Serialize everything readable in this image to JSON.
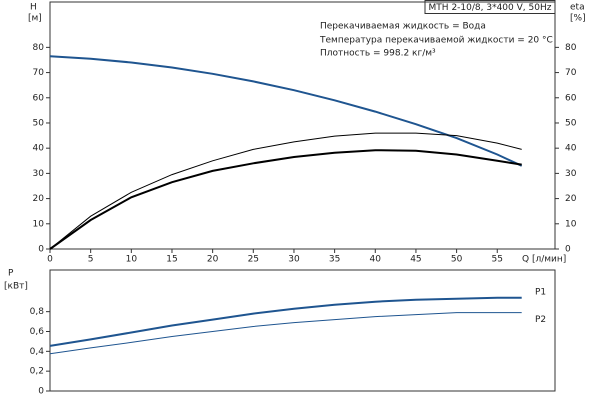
{
  "chart_data": [
    {
      "type": "line",
      "title": "MTH 2-10/8, 3*400 V, 50Hz",
      "annotations": [
        "Перекачиваемая жидкость = Вода",
        "Температура перекачиваемой жидкости = 20 °C",
        "Плотность = 998.2 кг/м³"
      ],
      "xlabel": "Q [л/мин]",
      "ylabel": [
        "H",
        "[м]"
      ],
      "y2label": [
        "eta",
        "[%]"
      ],
      "x": [
        0,
        5,
        10,
        15,
        20,
        25,
        30,
        35,
        40,
        45,
        50,
        55,
        58
      ],
      "xlim": [
        0,
        62.1
      ],
      "xticks": [
        0,
        5,
        10,
        15,
        20,
        25,
        30,
        35,
        40,
        45,
        50,
        55
      ],
      "ylim": [
        0,
        98
      ],
      "yticks": [
        0,
        10,
        20,
        30,
        40,
        50,
        60,
        70,
        80
      ],
      "y2lim": [
        0,
        98
      ],
      "y2ticks": [
        0,
        10,
        20,
        30,
        40,
        50,
        60,
        70,
        80
      ],
      "series": [
        {
          "color": "#1f5590",
          "values": [
            76.5,
            75.5,
            74,
            72,
            69.5,
            66.5,
            63,
            59,
            54.5,
            49.5,
            44,
            37.5,
            33
          ]
        },
        {
          "color": "#000000",
          "axis": "y2",
          "values": [
            0,
            13,
            22.5,
            29.5,
            35,
            39.5,
            42.5,
            44.8,
            46,
            46,
            45,
            42,
            39.5
          ]
        },
        {
          "color": "#000000",
          "axis": "y2",
          "values": [
            0,
            11.5,
            20.5,
            26.5,
            31,
            34,
            36.5,
            38.2,
            39.2,
            39,
            37.5,
            35,
            33.5
          ]
        }
      ]
    },
    {
      "type": "line",
      "ylabel": [
        "P",
        "[кВт]"
      ],
      "x": [
        0,
        5,
        10,
        15,
        20,
        25,
        30,
        35,
        40,
        45,
        50,
        55,
        58
      ],
      "xlim": [
        0,
        62.1
      ],
      "ylim": [
        0,
        1.22
      ],
      "yticks": [
        0,
        {
          "value": 0.2,
          "label": "0,2"
        },
        {
          "value": 0.4,
          "label": "0,4"
        },
        {
          "value": 0.6,
          "label": "0,6"
        },
        {
          "value": 0.8,
          "label": "0,8"
        }
      ],
      "series": [
        {
          "name": "P1",
          "color": "#1f5590",
          "values": [
            0.455,
            0.52,
            0.59,
            0.66,
            0.72,
            0.78,
            0.83,
            0.87,
            0.9,
            0.92,
            0.93,
            0.94,
            0.94
          ]
        },
        {
          "name": "P2",
          "color": "#1f5590",
          "values": [
            0.375,
            0.435,
            0.49,
            0.55,
            0.6,
            0.65,
            0.69,
            0.72,
            0.75,
            0.77,
            0.79,
            0.79,
            0.79
          ]
        }
      ]
    }
  ]
}
